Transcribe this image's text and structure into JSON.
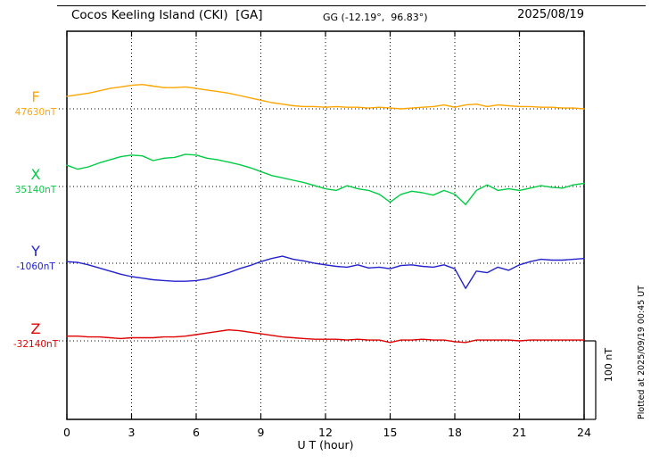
{
  "header": {
    "title": "Cocos Keeling Island (CKI)  [GA]",
    "coords": "GG (-12.19°,  96.83°)",
    "date": "2025/08/19"
  },
  "axis": {
    "xlabel": "U T (hour)",
    "x_tick_labels": [
      "0",
      "3",
      "6",
      "9",
      "12",
      "15",
      "18",
      "21",
      "24"
    ]
  },
  "side": {
    "plotted_note": "Plotted at 2025/09/19 00:45 UT",
    "scale_label": "100 nT"
  },
  "chart_data": {
    "type": "line",
    "title": "Cocos Keeling Island (CKI) [GA] magnetogram, 2025/08/19",
    "xlabel": "U T (hour)",
    "x_range": [
      0,
      24
    ],
    "x_ticks": [
      0,
      3,
      6,
      9,
      12,
      15,
      18,
      21,
      24
    ],
    "x_step_hours": 0.5,
    "scale_bar_nT": 100,
    "grid": "dotted vertical gridlines every 3 h; dotted horizontal baseline per trace",
    "legend_position": "left margin, one colored label per trace",
    "series": [
      {
        "name": "F",
        "baseline_value": 47630,
        "baseline_label": "47630nT",
        "color": "#FFA500",
        "offsets_nT": [
          16,
          18,
          20,
          23,
          26,
          28,
          30,
          31,
          29,
          27,
          27,
          28,
          26,
          24,
          22,
          20,
          17,
          14,
          11,
          8,
          6,
          4,
          3,
          3,
          2,
          3,
          2,
          2,
          1,
          2,
          1,
          0,
          1,
          2,
          3,
          5,
          2,
          5,
          6,
          3,
          5,
          4,
          3,
          3,
          2,
          2,
          1,
          1,
          0
        ]
      },
      {
        "name": "X",
        "baseline_value": 35140,
        "baseline_label": "35140nT",
        "color": "#00CC44",
        "offsets_nT": [
          27,
          22,
          25,
          30,
          34,
          38,
          40,
          39,
          33,
          36,
          37,
          41,
          40,
          36,
          34,
          31,
          28,
          24,
          19,
          14,
          11,
          8,
          5,
          1,
          -3,
          -5,
          1,
          -3,
          -5,
          -10,
          -20,
          -10,
          -6,
          -8,
          -11,
          -5,
          -10,
          -23,
          -5,
          2,
          -5,
          -3,
          -5,
          -2,
          1,
          -1,
          -2,
          2,
          4
        ]
      },
      {
        "name": "Y",
        "baseline_value": -1060,
        "baseline_label": "-1060nT",
        "color": "#2222CC",
        "offsets_nT": [
          2,
          1,
          -2,
          -6,
          -10,
          -14,
          -17,
          -19,
          -21,
          -22,
          -23,
          -23,
          -22,
          -20,
          -16,
          -12,
          -7,
          -3,
          2,
          6,
          9,
          5,
          3,
          0,
          -2,
          -4,
          -5,
          -2,
          -6,
          -5,
          -7,
          -3,
          -2,
          -4,
          -5,
          -2,
          -7,
          -32,
          -10,
          -12,
          -5,
          -9,
          -2,
          2,
          5,
          4,
          4,
          5,
          6
        ]
      },
      {
        "name": "Z",
        "baseline_value": -32140,
        "baseline_label": "-32140nT",
        "color": "#E00000",
        "offsets_nT": [
          6,
          6,
          5,
          5,
          4,
          3,
          4,
          4,
          4,
          5,
          5,
          6,
          8,
          10,
          12,
          14,
          13,
          11,
          9,
          7,
          5,
          4,
          3,
          2,
          2,
          2,
          1,
          2,
          1,
          1,
          -2,
          1,
          1,
          2,
          1,
          1,
          -1,
          -2,
          1,
          1,
          1,
          1,
          0,
          1,
          1,
          1,
          1,
          1,
          1
        ]
      }
    ]
  }
}
